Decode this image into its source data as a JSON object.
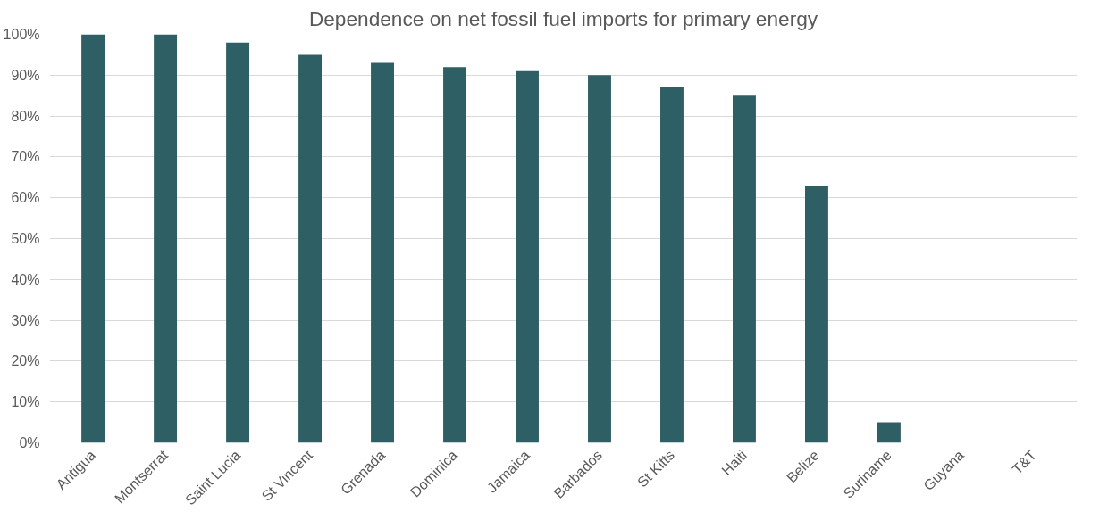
{
  "chart_data": {
    "type": "bar",
    "title": "Dependence on net fossil fuel imports for primary energy",
    "categories": [
      "Antigua",
      "Montserrat",
      "Saint Lucia",
      "St Vincent",
      "Grenada",
      "Dominica",
      "Jamaica",
      "Barbados",
      "St Kitts",
      "Haiti",
      "Belize",
      "Suriname",
      "Guyana",
      "T&T"
    ],
    "values": [
      100,
      100,
      98,
      95,
      93,
      92,
      91,
      90,
      87,
      85,
      63,
      5,
      0,
      0
    ],
    "color": "#2e5f65",
    "ylim": [
      0,
      100
    ],
    "yticks": [
      {
        "value": 0,
        "label": "0%"
      },
      {
        "value": 10,
        "label": "10%"
      },
      {
        "value": 20,
        "label": "20%"
      },
      {
        "value": 30,
        "label": "30%"
      },
      {
        "value": 40,
        "label": "40%"
      },
      {
        "value": 50,
        "label": "50%"
      },
      {
        "value": 60,
        "label": "60%"
      },
      {
        "value": 70,
        "label": "70%"
      },
      {
        "value": 80,
        "label": "80%"
      },
      {
        "value": 90,
        "label": "90%"
      },
      {
        "value": 100,
        "label": "100%"
      }
    ],
    "grid": "y"
  }
}
